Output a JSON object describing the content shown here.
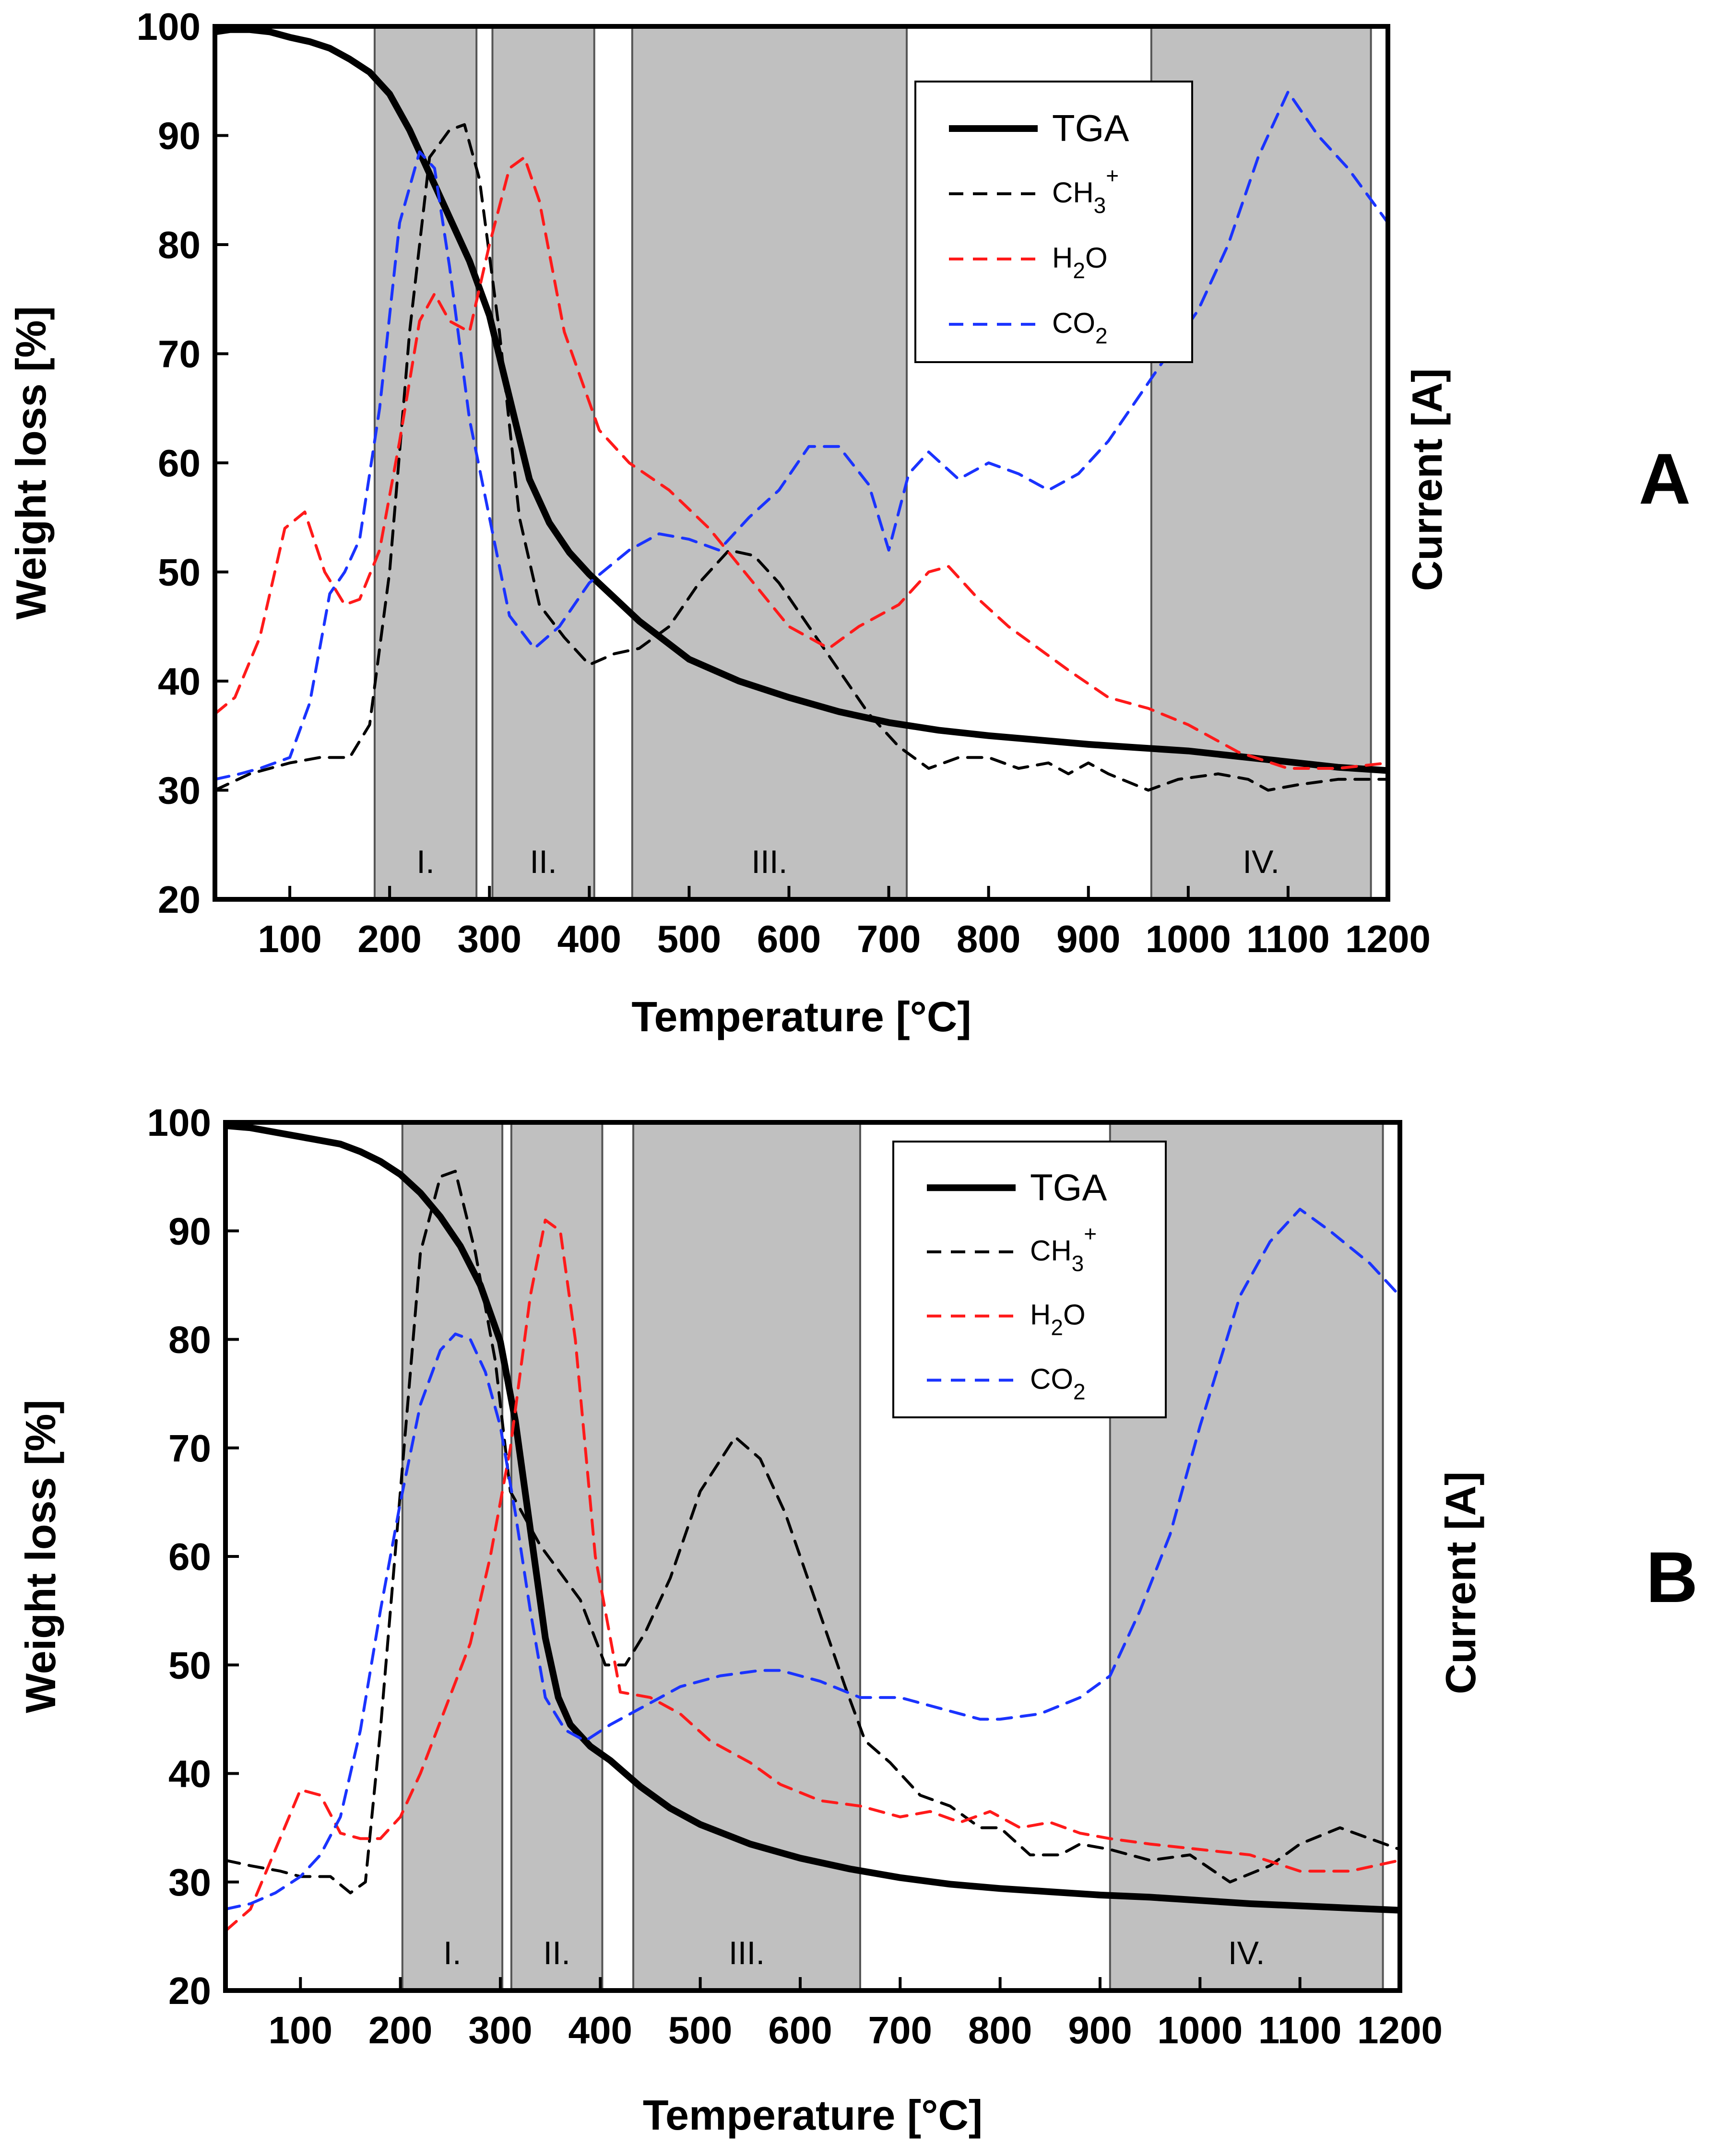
{
  "figure_title": "",
  "colors": {
    "TGA": "#000000",
    "CH3+": "#000000",
    "H2O": "#ff1a1a",
    "CO2": "#1a33ff",
    "region_fill": "#c0c0c0"
  },
  "chart_data": [
    {
      "panel_label": "A",
      "type": "line",
      "title": "",
      "xlabel": "Temperature [°C]",
      "ylabel": "Weight loss [%]",
      "ylabel_right": "Current [A]",
      "xlim": [
        25,
        1200
      ],
      "ylim": [
        20,
        100
      ],
      "xticks": [
        "100",
        "200",
        "300",
        "400",
        "500",
        "600",
        "700",
        "800",
        "900",
        "1000",
        "1100",
        "1200"
      ],
      "yticks": [
        "20",
        "30",
        "40",
        "50",
        "60",
        "70",
        "80",
        "90",
        "100"
      ],
      "legend_position": "top-right",
      "regions": [
        {
          "label": "I.",
          "x0": 185,
          "x1": 287
        },
        {
          "label": "II.",
          "x0": 303,
          "x1": 405
        },
        {
          "label": "III.",
          "x0": 443,
          "x1": 718
        },
        {
          "label": "IV.",
          "x0": 963,
          "x1": 1183
        }
      ],
      "series": [
        {
          "name": "TGA",
          "legend_main": "TGA",
          "legend_sub": "",
          "legend_sup": "",
          "legend_tail": "",
          "style": "solid",
          "x": [
            25,
            40,
            60,
            80,
            100,
            120,
            140,
            160,
            180,
            200,
            220,
            240,
            260,
            280,
            300,
            320,
            340,
            360,
            380,
            400,
            450,
            500,
            550,
            600,
            650,
            700,
            750,
            800,
            850,
            900,
            950,
            1000,
            1050,
            1100,
            1150,
            1200
          ],
          "y": [
            99.5,
            99.7,
            99.7,
            99.5,
            99.0,
            98.6,
            98.0,
            97.0,
            95.8,
            93.8,
            90.5,
            86.5,
            82.5,
            78.5,
            73.5,
            66.0,
            58.5,
            54.5,
            51.8,
            49.8,
            45.5,
            42.0,
            40.0,
            38.5,
            37.2,
            36.2,
            35.5,
            35.0,
            34.6,
            34.2,
            33.9,
            33.6,
            33.1,
            32.6,
            32.1,
            31.8
          ]
        },
        {
          "name": "CH3+",
          "legend_main": "CH",
          "legend_sub": "3",
          "legend_sup": "+",
          "legend_tail": "",
          "style": "dashed",
          "x": [
            25,
            60,
            100,
            130,
            160,
            180,
            200,
            220,
            240,
            260,
            275,
            290,
            310,
            330,
            350,
            375,
            400,
            425,
            450,
            480,
            510,
            540,
            565,
            590,
            620,
            650,
            680,
            710,
            740,
            770,
            800,
            830,
            860,
            880,
            900,
            920,
            960,
            990,
            1030,
            1060,
            1080,
            1110,
            1150,
            1200
          ],
          "y": [
            30,
            31.5,
            32.5,
            33,
            33,
            36,
            50,
            72,
            88,
            90.5,
            91,
            86,
            72,
            55,
            47,
            44,
            41.5,
            42.5,
            43,
            45,
            49,
            52,
            51.5,
            49,
            45,
            41,
            37,
            34,
            32,
            33,
            33,
            32,
            32.5,
            31.5,
            32.5,
            31.5,
            30,
            31,
            31.5,
            31,
            30,
            30.5,
            31,
            31
          ]
        },
        {
          "name": "H2O",
          "legend_main": "H",
          "legend_sub": "2",
          "legend_sup": "",
          "legend_tail": "O",
          "style": "dashed",
          "x": [
            25,
            45,
            70,
            95,
            115,
            135,
            155,
            170,
            190,
            210,
            230,
            245,
            260,
            280,
            300,
            320,
            335,
            350,
            375,
            410,
            440,
            480,
            520,
            560,
            600,
            640,
            670,
            710,
            740,
            760,
            790,
            820,
            850,
            880,
            920,
            960,
            1000,
            1050,
            1100,
            1150,
            1200
          ],
          "y": [
            37,
            38.5,
            44,
            54,
            55.5,
            50,
            47,
            47.5,
            52,
            62,
            73,
            75.5,
            73,
            72,
            80,
            87,
            88,
            84,
            72,
            63,
            60,
            57.5,
            54,
            49.5,
            45,
            43,
            45,
            47,
            50,
            50.5,
            47.5,
            45,
            43,
            41,
            38.5,
            37.5,
            36,
            33.5,
            32,
            32,
            32.5
          ]
        },
        {
          "name": "CO2",
          "legend_main": "CO",
          "legend_sub": "2",
          "legend_sup": "",
          "legend_tail": "",
          "style": "dashed",
          "x": [
            25,
            50,
            70,
            100,
            120,
            140,
            155,
            170,
            190,
            210,
            230,
            245,
            260,
            280,
            300,
            320,
            345,
            370,
            400,
            440,
            470,
            500,
            530,
            560,
            590,
            620,
            650,
            680,
            700,
            720,
            740,
            770,
            800,
            830,
            860,
            890,
            920,
            950,
            980,
            1010,
            1040,
            1070,
            1100,
            1130,
            1160,
            1200
          ],
          "y": [
            31,
            31.5,
            32,
            33,
            38,
            48,
            50,
            53,
            65,
            82,
            88.5,
            87,
            78,
            64,
            55,
            46,
            43,
            45,
            49,
            52,
            53.5,
            53,
            52,
            55,
            57.5,
            61.5,
            61.5,
            58,
            52,
            59,
            61,
            58.5,
            60,
            59,
            57.5,
            59,
            62,
            66,
            70,
            74,
            80,
            88,
            94,
            90,
            87,
            82
          ]
        }
      ]
    },
    {
      "panel_label": "B",
      "type": "line",
      "title": "",
      "xlabel": "Temperature [°C]",
      "ylabel": "Weight loss [%]",
      "ylabel_right": "Current [A]",
      "xlim": [
        25,
        1200
      ],
      "ylim": [
        20,
        100
      ],
      "xticks": [
        "100",
        "200",
        "300",
        "400",
        "500",
        "600",
        "700",
        "800",
        "900",
        "1000",
        "1100",
        "1200"
      ],
      "yticks": [
        "20",
        "30",
        "40",
        "50",
        "60",
        "70",
        "80",
        "90",
        "100"
      ],
      "legend_position": "top-right",
      "regions": [
        {
          "label": "I.",
          "x0": 202,
          "x1": 302
        },
        {
          "label": "II.",
          "x0": 311,
          "x1": 402
        },
        {
          "label": "III.",
          "x0": 433,
          "x1": 660
        },
        {
          "label": "IV.",
          "x0": 910,
          "x1": 1183
        }
      ],
      "series": [
        {
          "name": "TGA",
          "legend_main": "TGA",
          "legend_sub": "",
          "legend_sup": "",
          "legend_tail": "",
          "style": "solid",
          "x": [
            25,
            50,
            80,
            110,
            140,
            160,
            180,
            200,
            220,
            240,
            260,
            280,
            300,
            315,
            330,
            345,
            358,
            370,
            390,
            410,
            440,
            470,
            500,
            550,
            600,
            650,
            700,
            750,
            800,
            850,
            900,
            950,
            1000,
            1050,
            1100,
            1150,
            1200
          ],
          "y": [
            99.7,
            99.5,
            99.0,
            98.5,
            98.0,
            97.3,
            96.4,
            95.2,
            93.5,
            91.3,
            88.6,
            85.0,
            79.8,
            72.5,
            62.5,
            52.5,
            47.0,
            44.5,
            42.5,
            41.2,
            38.8,
            36.8,
            35.3,
            33.5,
            32.2,
            31.2,
            30.4,
            29.8,
            29.4,
            29.1,
            28.8,
            28.6,
            28.3,
            28.0,
            27.8,
            27.6,
            27.4
          ]
        },
        {
          "name": "CH3+",
          "legend_main": "CH",
          "legend_sub": "3",
          "legend_sup": "+",
          "legend_tail": "",
          "style": "dashed",
          "x": [
            25,
            50,
            80,
            100,
            130,
            150,
            165,
            180,
            200,
            220,
            240,
            255,
            275,
            295,
            310,
            340,
            380,
            405,
            425,
            445,
            470,
            500,
            535,
            560,
            585,
            615,
            645,
            665,
            690,
            720,
            750,
            780,
            800,
            830,
            860,
            880,
            910,
            950,
            990,
            1030,
            1070,
            1100,
            1140,
            1170,
            1200
          ],
          "y": [
            32,
            31.5,
            31,
            30.5,
            30.5,
            29,
            30,
            44,
            66,
            88,
            95,
            95.5,
            88,
            78,
            66,
            61,
            56,
            50,
            50,
            53,
            58,
            66,
            71,
            69,
            64,
            56,
            48,
            43,
            41,
            38,
            37,
            35,
            35,
            32.5,
            32.5,
            33.5,
            33,
            32,
            32.5,
            30,
            31.5,
            33.5,
            35,
            34,
            33
          ]
        },
        {
          "name": "H2O",
          "legend_main": "H",
          "legend_sub": "2",
          "legend_sup": "",
          "legend_tail": "O",
          "style": "dashed",
          "x": [
            25,
            50,
            75,
            100,
            120,
            140,
            160,
            180,
            200,
            220,
            245,
            270,
            290,
            310,
            330,
            345,
            360,
            375,
            395,
            420,
            450,
            480,
            510,
            550,
            580,
            620,
            660,
            700,
            730,
            760,
            790,
            820,
            850,
            880,
            910,
            950,
            1000,
            1050,
            1100,
            1150,
            1200
          ],
          "y": [
            25.5,
            27.5,
            33,
            38.5,
            38,
            34.5,
            34,
            34,
            36,
            40,
            46,
            52,
            60,
            70,
            84,
            91,
            90,
            80,
            60,
            47.5,
            47,
            45.5,
            43,
            41,
            39,
            37.5,
            37,
            36,
            36.5,
            35.5,
            36.5,
            35,
            35.5,
            34.5,
            34,
            33.5,
            33,
            32.5,
            31,
            31,
            32
          ]
        },
        {
          "name": "CO2",
          "legend_main": "CO",
          "legend_sub": "2",
          "legend_sup": "",
          "legend_tail": "",
          "style": "dashed",
          "x": [
            25,
            50,
            75,
            100,
            120,
            140,
            160,
            180,
            200,
            220,
            240,
            255,
            270,
            285,
            300,
            315,
            330,
            345,
            365,
            385,
            410,
            440,
            480,
            520,
            560,
            580,
            620,
            660,
            700,
            740,
            780,
            800,
            840,
            880,
            910,
            940,
            970,
            1000,
            1040,
            1070,
            1100,
            1130,
            1170,
            1200
          ],
          "y": [
            27.5,
            28,
            29,
            30.5,
            32.5,
            36,
            44,
            55,
            65,
            74,
            79,
            80.5,
            80,
            77,
            72,
            64,
            55,
            47,
            44,
            43,
            44.5,
            46,
            48,
            49,
            49.5,
            49.5,
            48.5,
            47,
            47,
            46,
            45,
            45,
            45.5,
            47,
            49,
            55,
            62,
            72,
            84,
            89,
            92,
            90,
            87,
            84
          ]
        }
      ]
    }
  ]
}
